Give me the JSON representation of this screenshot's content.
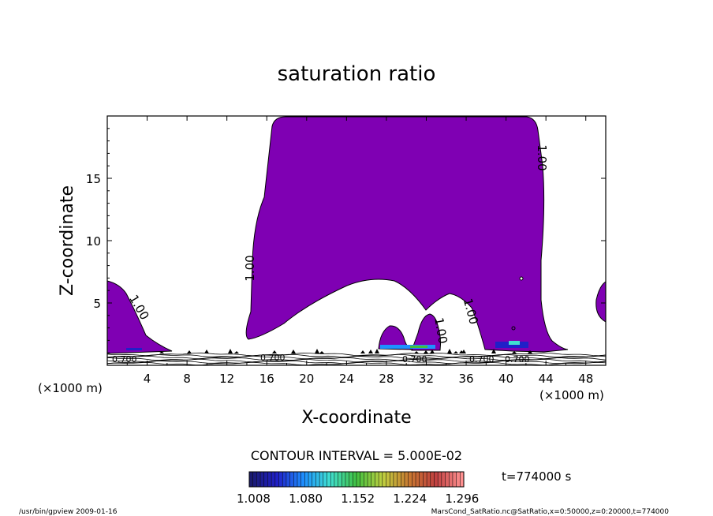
{
  "chart_data": {
    "type": "contour",
    "title": "saturation ratio",
    "xlabel": "X-coordinate",
    "ylabel": "Z-coordinate",
    "x_unit_left": "(×1000 m)",
    "x_unit_right": "(×1000 m)",
    "xlim": [
      0,
      50
    ],
    "ylim": [
      0,
      20
    ],
    "xticks": [
      4,
      8,
      12,
      16,
      20,
      24,
      28,
      32,
      36,
      40,
      44,
      48
    ],
    "yticks": [
      5,
      10,
      15
    ],
    "contour_labels": [
      "1.00",
      "1.00",
      "1.00",
      "1.00",
      "1.00"
    ],
    "ground_labels": [
      "0.700",
      "0.700",
      "0.700",
      "0.700",
      "0.700"
    ],
    "contour_interval_text": "CONTOUR INTERVAL = 5.000E-02",
    "time_text": "t=774000 s",
    "colorbar": {
      "ticks": [
        "1.008",
        "1.080",
        "1.152",
        "1.224",
        "1.296"
      ],
      "range": [
        1.008,
        1.296
      ],
      "colors": [
        "#1a1a6e",
        "#2020c8",
        "#1e90ff",
        "#40e0d0",
        "#40c040",
        "#c0d040",
        "#c87830",
        "#c04040",
        "#ff9090"
      ]
    },
    "fill_color": "#7f00b3",
    "footer_left": "/usr/bin/gpview   2009-01-16",
    "footer_right": "MarsCond_SatRatio.nc@SatRatio,x=0:50000,z=0:20000,t=774000"
  }
}
